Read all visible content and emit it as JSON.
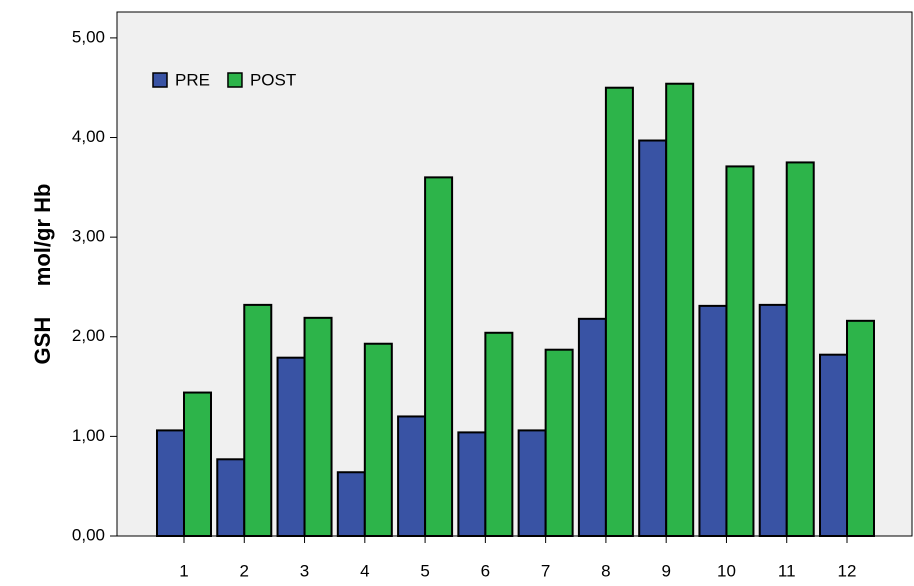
{
  "chart_data": {
    "type": "bar",
    "y_label": "GSH     mol/gr Hb",
    "categories": [
      "1",
      "2",
      "3",
      "4",
      "5",
      "6",
      "7",
      "8",
      "9",
      "10",
      "11",
      "12"
    ],
    "series": [
      {
        "name": "PRE",
        "color": "#3953a4",
        "values": [
          1.06,
          0.77,
          1.79,
          0.64,
          1.2,
          1.04,
          1.06,
          2.18,
          3.97,
          2.31,
          2.32,
          1.82
        ]
      },
      {
        "name": "POST",
        "color": "#2db44a",
        "values": [
          1.44,
          2.32,
          2.19,
          1.93,
          3.6,
          2.04,
          1.87,
          4.5,
          4.54,
          3.71,
          3.75,
          2.16
        ]
      }
    ],
    "ylim": [
      0,
      5.26
    ],
    "yticks": [
      {
        "value": 0,
        "label": "0,00"
      },
      {
        "value": 1,
        "label": "1,00"
      },
      {
        "value": 2,
        "label": "2,00"
      },
      {
        "value": 3,
        "label": "3,00"
      },
      {
        "value": 4,
        "label": "4,00"
      },
      {
        "value": 5,
        "label": "5,00"
      }
    ],
    "grid": false,
    "legend": "top-left"
  }
}
